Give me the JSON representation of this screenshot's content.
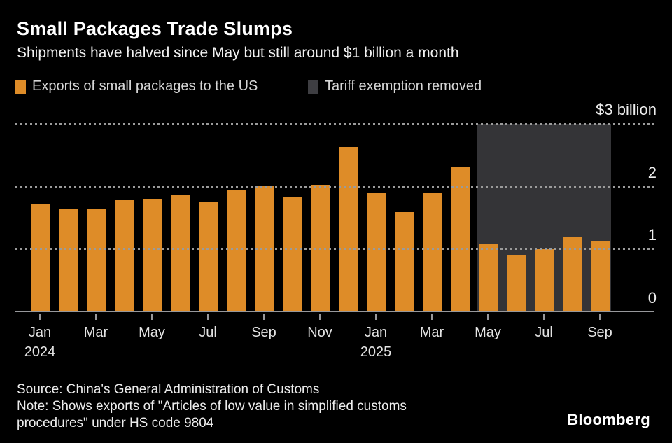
{
  "chart_data": {
    "type": "bar",
    "title": "Small Packages Trade Slumps",
    "subtitle": "Shipments have halved since May but still around $1 billion a month",
    "unit": "$ billion",
    "ylim": [
      0,
      3
    ],
    "grid": "horizontal dotted",
    "legend_position": "top-left",
    "categories": [
      "Jan 2024",
      "Feb 2024",
      "Mar 2024",
      "Apr 2024",
      "May 2024",
      "Jun 2024",
      "Jul 2024",
      "Aug 2024",
      "Sep 2024",
      "Oct 2024",
      "Nov 2024",
      "Dec 2024",
      "Jan 2025",
      "Feb 2025",
      "Mar 2025",
      "Apr 2025",
      "May 2025",
      "Jun 2025",
      "Jul 2025",
      "Aug 2025",
      "Sep 2025"
    ],
    "series": [
      {
        "name": "Exports of small packages to the US",
        "color": "#DE8C28",
        "values": [
          1.72,
          1.65,
          1.65,
          1.79,
          1.81,
          1.86,
          1.76,
          1.95,
          2.01,
          1.84,
          2.02,
          2.63,
          1.9,
          1.59,
          1.9,
          2.31,
          1.08,
          0.92,
          1.0,
          1.19,
          1.14
        ]
      }
    ],
    "y_ticks": [
      {
        "value": 3,
        "label": "$3 billion"
      },
      {
        "value": 2,
        "label": "2"
      },
      {
        "value": 1,
        "label": "1"
      },
      {
        "value": 0,
        "label": "0"
      }
    ],
    "x_ticks": [
      {
        "index": 0,
        "label": "Jan",
        "year": "2024"
      },
      {
        "index": 2,
        "label": "Mar"
      },
      {
        "index": 4,
        "label": "May"
      },
      {
        "index": 6,
        "label": "Jul"
      },
      {
        "index": 8,
        "label": "Sep"
      },
      {
        "index": 10,
        "label": "Nov"
      },
      {
        "index": 12,
        "label": "Jan",
        "year": "2025"
      },
      {
        "index": 14,
        "label": "Mar"
      },
      {
        "index": 16,
        "label": "May"
      },
      {
        "index": 18,
        "label": "Jul"
      },
      {
        "index": 20,
        "label": "Sep"
      }
    ],
    "shaded_region": {
      "label": "Tariff exemption removed",
      "color": "#343437",
      "start_category": "May 2025",
      "end_category": "Sep 2025",
      "start_index": 16,
      "end_index": 20
    },
    "legend": [
      {
        "label": "Exports of small packages to the US",
        "color": "#DE8C28"
      },
      {
        "label": "Tariff exemption removed",
        "color": "#3E3E42"
      }
    ]
  },
  "footer": {
    "source": "Source: China's General Administration of Customs",
    "note": "Note: Shows exports of \"Articles of low value in simplified customs procedures\" under HS code 9804",
    "brand": "Bloomberg"
  }
}
